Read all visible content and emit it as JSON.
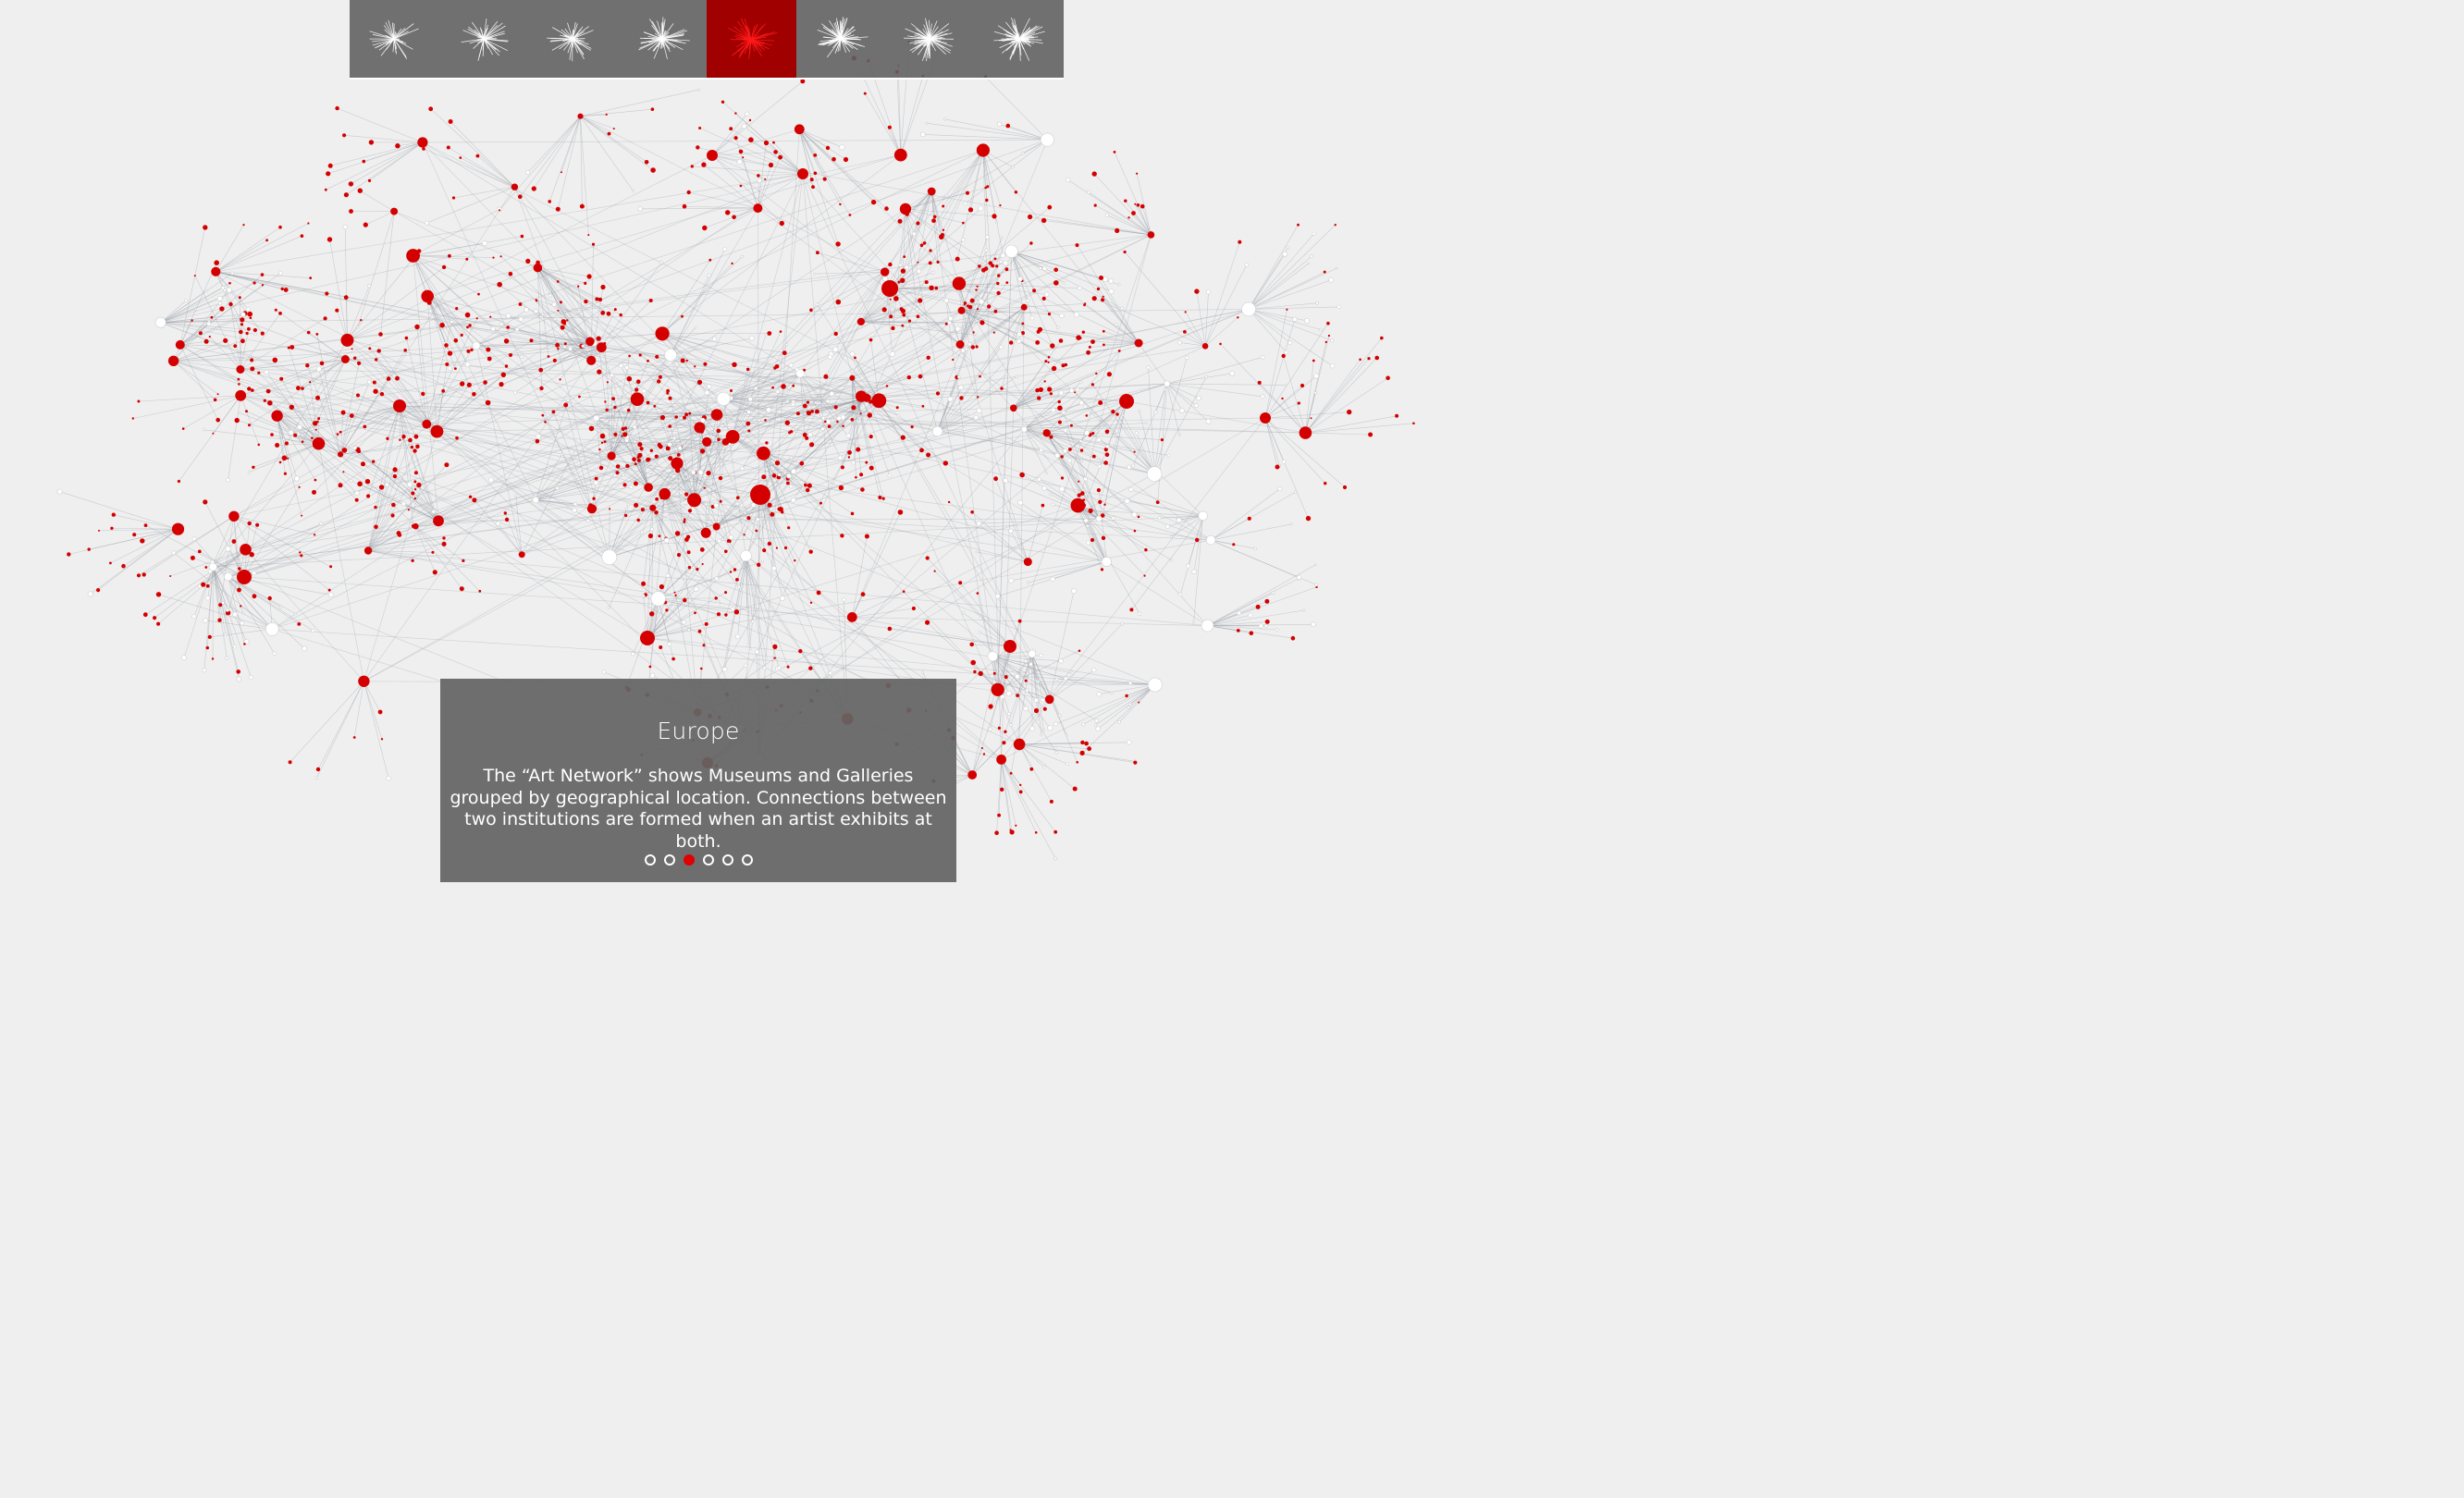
{
  "thumbnails": [
    {
      "icon": "network-thumbnail-icon",
      "color": "#ffffff",
      "active": false
    },
    {
      "icon": "network-thumbnail-icon",
      "color": "#ffffff",
      "active": false
    },
    {
      "icon": "network-thumbnail-icon",
      "color": "#ffffff",
      "active": false
    },
    {
      "icon": "network-thumbnail-icon",
      "color": "#ffffff",
      "active": false
    },
    {
      "icon": "network-thumbnail-icon",
      "color": "#ff1a1a",
      "active": true
    },
    {
      "icon": "network-thumbnail-icon",
      "color": "#ffffff",
      "active": false
    },
    {
      "icon": "network-thumbnail-icon",
      "color": "#ffffff",
      "active": false
    },
    {
      "icon": "network-thumbnail-icon",
      "color": "#ffffff",
      "active": false
    }
  ],
  "caption": {
    "title": "Europe",
    "text": "The “Art Network” shows Museums and Galleries grouped by geographical location. Connections between two institutions are formed when an artist exhibits at both."
  },
  "pagination": {
    "count": 6,
    "active_index": 2
  },
  "colors": {
    "background": "#efefef",
    "node_highlight": "#d40000",
    "node_other": "#ffffff",
    "edge": "#9aa0a8",
    "active_thumbnail": "#a00000"
  }
}
